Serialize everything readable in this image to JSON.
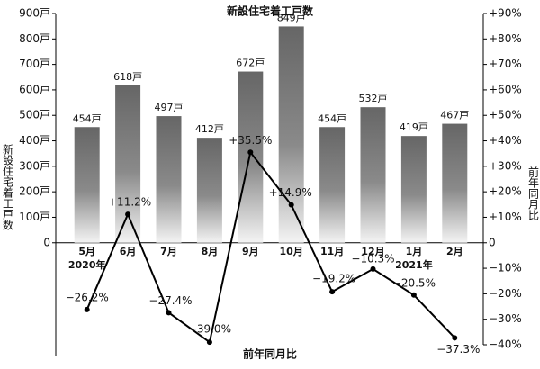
{
  "chart_data": {
    "type": "bar_line",
    "title": "新設住宅着工戸数",
    "ylabel": "新設住宅着工戸数",
    "y2label": "前年同月比",
    "xlabel": "前年同月比",
    "categories": [
      "5月",
      "6月",
      "7月",
      "8月",
      "9月",
      "10月",
      "11月",
      "12月",
      "1月",
      "2月"
    ],
    "category_sublabels": [
      "2020年",
      null,
      null,
      null,
      null,
      null,
      null,
      null,
      "2021年",
      null
    ],
    "series": [
      {
        "name": "新設住宅着工戸数",
        "type": "bar",
        "color": "#6e6e6e",
        "values": [
          454,
          618,
          497,
          412,
          672,
          849,
          454,
          532,
          419,
          467
        ],
        "value_labels": [
          "454戸",
          "618戸",
          "497戸",
          "412戸",
          "672戸",
          "849戸",
          "454戸",
          "532戸",
          "419戸",
          "467戸"
        ]
      },
      {
        "name": "前年同月比",
        "type": "line",
        "axis": "y2",
        "color": "#000000",
        "values": [
          -26.2,
          11.2,
          -27.4,
          -39.0,
          35.5,
          14.9,
          -19.2,
          -10.3,
          -20.5,
          -37.3
        ],
        "value_labels": [
          "−26.2%",
          "+11.2%",
          "−27.4%",
          "−39.0%",
          "+35.5%",
          "+14.9%",
          "−19.2%",
          "−10.3%",
          "−20.5%",
          "−37.3%"
        ]
      }
    ],
    "ylim": [
      -400,
      900
    ],
    "yticks": [
      0,
      {
        "value": 100,
        "label": "100戸"
      },
      {
        "value": 200,
        "label": "200戸"
      },
      {
        "value": 300,
        "label": "300戸"
      },
      {
        "value": 400,
        "label": "400戸"
      },
      {
        "value": 500,
        "label": "500戸"
      },
      {
        "value": 600,
        "label": "600戸"
      },
      {
        "value": 700,
        "label": "700戸"
      },
      {
        "value": 800,
        "label": "800戸"
      },
      {
        "value": 900,
        "label": "900戸"
      }
    ],
    "y2lim": [
      -40,
      90
    ],
    "y2ticks": [
      {
        "value": -40,
        "label": "−40%"
      },
      {
        "value": -30,
        "label": "−30%"
      },
      {
        "value": -20,
        "label": "−20%"
      },
      {
        "value": -10,
        "label": "−10%"
      },
      0,
      {
        "value": 10,
        "label": "+10%"
      },
      {
        "value": 20,
        "label": "+20%"
      },
      {
        "value": 30,
        "label": "+30%"
      },
      {
        "value": 40,
        "label": "+40%"
      },
      {
        "value": 50,
        "label": "+50%"
      },
      {
        "value": 60,
        "label": "+60%"
      },
      {
        "value": 70,
        "label": "+70%"
      },
      {
        "value": 80,
        "label": "+80%"
      },
      {
        "value": 90,
        "label": "+90%"
      }
    ]
  }
}
